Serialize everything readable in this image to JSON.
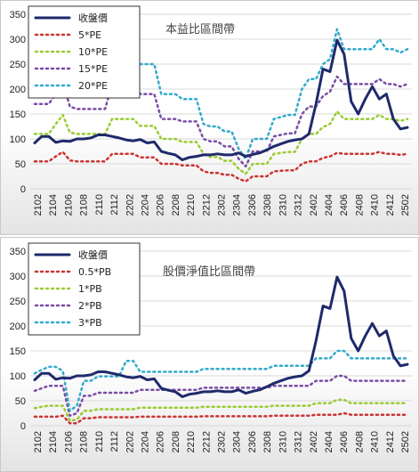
{
  "chart_data": [
    {
      "type": "line",
      "title": "本益比區間帶",
      "ylim": [
        0,
        350
      ],
      "yticks": [
        0,
        50,
        100,
        150,
        200,
        250,
        300,
        350
      ],
      "xticks": [
        "2102",
        "2104",
        "2106",
        "2108",
        "2110",
        "2112",
        "2202",
        "2204",
        "2206",
        "2208",
        "2210",
        "2212",
        "2302",
        "2304",
        "2306",
        "2308",
        "2310",
        "2312",
        "2402",
        "2404",
        "2406",
        "2408",
        "2410",
        "2412",
        "2502"
      ],
      "grid": true,
      "legend_placement": "top-left",
      "series": [
        {
          "name": "收盤價",
          "color": "#1f2a6b",
          "width": 3,
          "dash": "",
          "values": [
            92,
            105,
            105,
            93,
            96,
            95,
            100,
            100,
            102,
            108,
            108,
            105,
            102,
            98,
            96,
            99,
            92,
            94,
            75,
            71,
            68,
            58,
            63,
            65,
            68,
            68,
            70,
            68,
            68,
            72,
            65,
            69,
            72,
            78,
            85,
            90,
            95,
            98,
            100,
            110,
            170,
            240,
            235,
            298,
            270,
            175,
            150,
            180,
            205,
            180,
            190,
            140,
            120,
            123
          ]
        },
        {
          "name": "5*PE",
          "color": "#cc3333",
          "width": 2.5,
          "dash": "2,4",
          "values": [
            55,
            55,
            55,
            65,
            74,
            57,
            55,
            55,
            55,
            55,
            55,
            70,
            70,
            70,
            70,
            63,
            63,
            63,
            50,
            50,
            50,
            47,
            47,
            47,
            35,
            32,
            32,
            28,
            28,
            20,
            15,
            25,
            25,
            25,
            35,
            36,
            37,
            37,
            50,
            55,
            55,
            62,
            65,
            72,
            70,
            70,
            70,
            70,
            70,
            74,
            70,
            70,
            68,
            70
          ]
        },
        {
          "name": "10*PE",
          "color": "#99cc33",
          "width": 2.5,
          "dash": "2,4",
          "values": [
            110,
            110,
            110,
            130,
            148,
            113,
            110,
            110,
            110,
            110,
            110,
            140,
            140,
            140,
            140,
            126,
            126,
            126,
            100,
            100,
            100,
            94,
            94,
            94,
            70,
            64,
            64,
            56,
            56,
            40,
            30,
            50,
            50,
            50,
            70,
            72,
            74,
            74,
            100,
            110,
            110,
            124,
            130,
            155,
            140,
            140,
            140,
            140,
            140,
            148,
            140,
            140,
            136,
            140
          ]
        },
        {
          "name": "15*PE",
          "color": "#7a4da6",
          "width": 2.5,
          "dash": "2,4",
          "values": [
            170,
            170,
            170,
            190,
            215,
            165,
            160,
            160,
            160,
            160,
            160,
            210,
            210,
            210,
            210,
            190,
            190,
            190,
            140,
            140,
            140,
            135,
            135,
            135,
            100,
            95,
            95,
            85,
            85,
            60,
            45,
            75,
            75,
            75,
            105,
            108,
            111,
            111,
            150,
            165,
            165,
            186,
            195,
            225,
            210,
            210,
            210,
            210,
            210,
            220,
            210,
            210,
            205,
            210
          ]
        },
        {
          "name": "20*PE",
          "color": "#33aacc",
          "width": 2.5,
          "dash": "2,4",
          "values": [
            230,
            230,
            230,
            255,
            285,
            220,
            220,
            220,
            220,
            280,
            280,
            280,
            280,
            280,
            280,
            250,
            250,
            250,
            190,
            190,
            190,
            180,
            180,
            180,
            130,
            125,
            125,
            115,
            115,
            80,
            60,
            100,
            100,
            100,
            140,
            144,
            148,
            148,
            200,
            220,
            220,
            250,
            260,
            320,
            280,
            280,
            280,
            280,
            280,
            300,
            280,
            280,
            273,
            280
          ]
        }
      ]
    },
    {
      "type": "line",
      "title": "股價淨值比區間帶",
      "ylim": [
        0,
        350
      ],
      "yticks": [
        0,
        50,
        100,
        150,
        200,
        250,
        300,
        350
      ],
      "xticks": [
        "2102",
        "2104",
        "2106",
        "2108",
        "2110",
        "2112",
        "2202",
        "2204",
        "2206",
        "2208",
        "2210",
        "2212",
        "2302",
        "2304",
        "2306",
        "2308",
        "2310",
        "2312",
        "2402",
        "2404",
        "2406",
        "2408",
        "2410",
        "2412",
        "2502"
      ],
      "grid": true,
      "legend_placement": "top-left",
      "series": [
        {
          "name": "收盤價",
          "color": "#1f2a6b",
          "width": 3,
          "dash": "",
          "values": [
            92,
            105,
            105,
            93,
            96,
            95,
            100,
            100,
            102,
            108,
            108,
            105,
            102,
            98,
            96,
            99,
            92,
            94,
            75,
            71,
            68,
            58,
            63,
            65,
            68,
            68,
            70,
            68,
            68,
            72,
            65,
            69,
            72,
            78,
            85,
            90,
            95,
            98,
            100,
            110,
            170,
            240,
            235,
            298,
            270,
            175,
            150,
            180,
            205,
            180,
            190,
            140,
            120,
            123
          ]
        },
        {
          "name": "0.5*PB",
          "color": "#cc3333",
          "width": 2.5,
          "dash": "2,4",
          "values": [
            18,
            18,
            18,
            18,
            20,
            5,
            5,
            15,
            15,
            17,
            17,
            17,
            17,
            17,
            17,
            18,
            18,
            18,
            18,
            18,
            18,
            18,
            18,
            18,
            19,
            19,
            19,
            19,
            19,
            19,
            19,
            19,
            19,
            19,
            20,
            20,
            20,
            20,
            20,
            20,
            22,
            22,
            22,
            22,
            25,
            22,
            22,
            22,
            22,
            22,
            22,
            22,
            22,
            22
          ]
        },
        {
          "name": "1*PB",
          "color": "#99cc33",
          "width": 2.5,
          "dash": "2,4",
          "values": [
            35,
            38,
            40,
            40,
            40,
            10,
            12,
            30,
            30,
            33,
            33,
            33,
            33,
            33,
            33,
            36,
            36,
            36,
            36,
            36,
            36,
            36,
            36,
            36,
            38,
            38,
            38,
            38,
            38,
            38,
            38,
            38,
            38,
            38,
            40,
            40,
            40,
            40,
            40,
            40,
            45,
            45,
            45,
            52,
            52,
            45,
            45,
            45,
            45,
            45,
            45,
            45,
            45,
            45
          ]
        },
        {
          "name": "2*PB",
          "color": "#7a4da6",
          "width": 2.5,
          "dash": "2,4",
          "values": [
            70,
            75,
            80,
            80,
            80,
            20,
            25,
            60,
            60,
            66,
            66,
            66,
            66,
            66,
            66,
            72,
            72,
            72,
            72,
            72,
            72,
            72,
            72,
            72,
            76,
            76,
            76,
            76,
            76,
            76,
            76,
            76,
            76,
            76,
            80,
            80,
            80,
            80,
            80,
            80,
            90,
            90,
            90,
            100,
            100,
            90,
            90,
            90,
            90,
            90,
            90,
            90,
            90,
            90
          ]
        },
        {
          "name": "3*PB",
          "color": "#33aacc",
          "width": 2.5,
          "dash": "2,4",
          "values": [
            105,
            112,
            118,
            118,
            110,
            30,
            40,
            90,
            90,
            99,
            99,
            99,
            99,
            130,
            130,
            108,
            108,
            108,
            108,
            108,
            108,
            108,
            108,
            108,
            114,
            114,
            114,
            114,
            114,
            114,
            114,
            114,
            114,
            114,
            120,
            120,
            120,
            120,
            120,
            120,
            135,
            135,
            135,
            150,
            150,
            135,
            135,
            135,
            135,
            135,
            135,
            135,
            135,
            135
          ]
        }
      ]
    }
  ]
}
